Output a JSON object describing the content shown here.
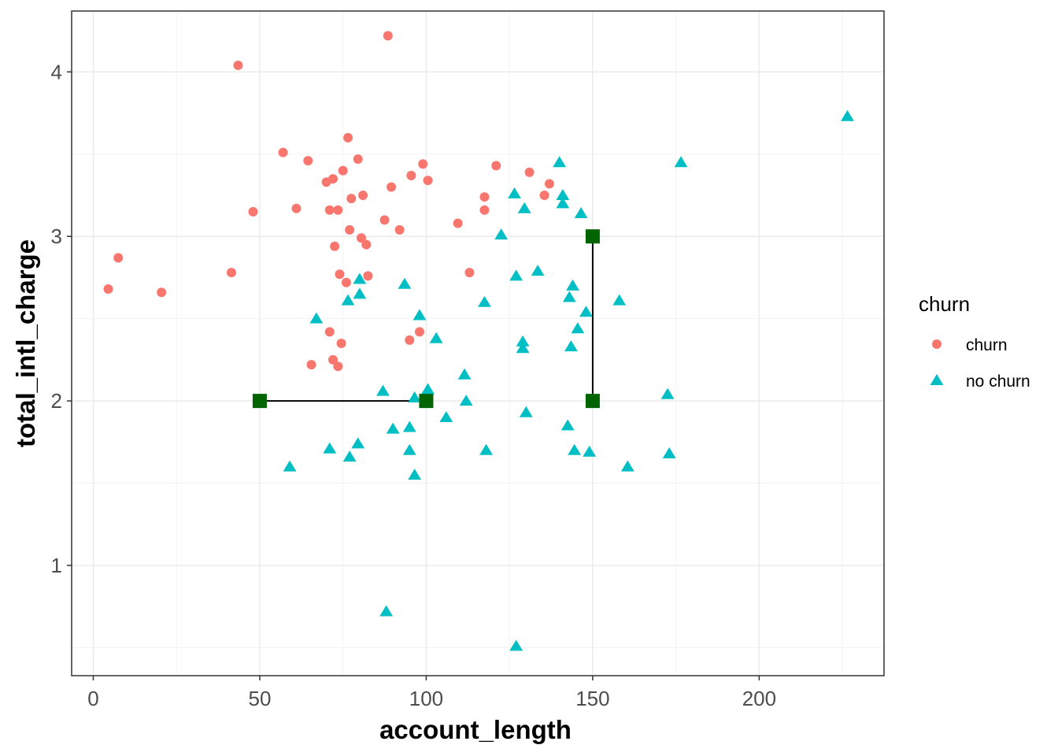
{
  "chart_data": {
    "type": "scatter",
    "xlabel": "account_length",
    "ylabel": "total_intl_charge",
    "xlim": [
      -6.5,
      237.5
    ],
    "ylim": [
      0.33,
      4.37
    ],
    "x_ticks": [
      0,
      50,
      100,
      150,
      200
    ],
    "y_ticks": [
      1,
      2,
      3,
      4
    ],
    "x_tick_labels": [
      "0",
      "50",
      "100",
      "150",
      "200"
    ],
    "y_tick_labels": [
      "1",
      "2",
      "3",
      "4"
    ],
    "grid": true,
    "legend": {
      "title": "churn",
      "position": "right",
      "entries": [
        {
          "label": "churn",
          "shape": "circle",
          "color": "#F8766D"
        },
        {
          "label": "no churn",
          "shape": "triangle",
          "color": "#00BFC4"
        }
      ]
    },
    "series": [
      {
        "name": "churn",
        "shape": "circle",
        "color": "#F8766D",
        "points": [
          [
            4.5,
            2.68
          ],
          [
            7.5,
            2.87
          ],
          [
            20.5,
            2.66
          ],
          [
            41.5,
            2.78
          ],
          [
            43.5,
            4.04
          ],
          [
            48,
            3.15
          ],
          [
            57,
            3.51
          ],
          [
            61,
            3.17
          ],
          [
            64.5,
            3.46
          ],
          [
            70,
            3.33
          ],
          [
            71,
            3.16
          ],
          [
            72,
            3.35
          ],
          [
            73.5,
            3.16
          ],
          [
            72.5,
            2.94
          ],
          [
            74,
            2.77
          ],
          [
            75,
            3.4
          ],
          [
            76.5,
            3.6
          ],
          [
            77,
            3.04
          ],
          [
            77.5,
            3.23
          ],
          [
            79.5,
            3.47
          ],
          [
            80.5,
            2.99
          ],
          [
            81,
            3.25
          ],
          [
            82,
            2.95
          ],
          [
            82.5,
            2.76
          ],
          [
            76,
            2.72
          ],
          [
            71,
            2.42
          ],
          [
            74.5,
            2.35
          ],
          [
            72,
            2.25
          ],
          [
            73.5,
            2.21
          ],
          [
            65.5,
            2.22
          ],
          [
            87.5,
            3.1
          ],
          [
            88.5,
            4.22
          ],
          [
            89.5,
            3.3
          ],
          [
            92,
            3.04
          ],
          [
            95.5,
            3.37
          ],
          [
            99,
            3.44
          ],
          [
            100.5,
            3.34
          ],
          [
            95,
            2.37
          ],
          [
            98,
            2.42
          ],
          [
            109.5,
            3.08
          ],
          [
            113,
            2.78
          ],
          [
            117.5,
            3.24
          ],
          [
            117.5,
            3.16
          ],
          [
            121,
            3.43
          ],
          [
            131,
            3.39
          ],
          [
            135.5,
            3.25
          ],
          [
            137,
            3.32
          ]
        ]
      },
      {
        "name": "no churn",
        "shape": "triangle",
        "color": "#00BFC4",
        "points": [
          [
            59,
            1.6
          ],
          [
            67,
            2.5
          ],
          [
            71,
            1.71
          ],
          [
            76.5,
            2.61
          ],
          [
            77,
            1.66
          ],
          [
            79.5,
            1.74
          ],
          [
            80,
            2.74
          ],
          [
            80,
            2.65
          ],
          [
            87,
            2.06
          ],
          [
            88,
            0.72
          ],
          [
            90,
            1.83
          ],
          [
            93.5,
            2.71
          ],
          [
            95,
            1.84
          ],
          [
            95,
            1.7
          ],
          [
            96.5,
            1.55
          ],
          [
            96.5,
            2.02
          ],
          [
            98,
            2.52
          ],
          [
            100.5,
            2.07
          ],
          [
            103,
            2.38
          ],
          [
            106,
            1.9
          ],
          [
            111.5,
            2.16
          ],
          [
            112,
            2.0
          ],
          [
            118,
            1.7
          ],
          [
            117.5,
            2.6
          ],
          [
            122.5,
            3.01
          ],
          [
            126.5,
            3.26
          ],
          [
            127,
            2.76
          ],
          [
            127,
            0.51
          ],
          [
            129,
            2.32
          ],
          [
            129,
            2.36
          ],
          [
            129.5,
            3.17
          ],
          [
            130,
            1.93
          ],
          [
            133.5,
            2.79
          ],
          [
            140,
            3.45
          ],
          [
            141,
            3.25
          ],
          [
            141,
            3.2
          ],
          [
            142.5,
            1.85
          ],
          [
            143,
            2.63
          ],
          [
            143.5,
            2.33
          ],
          [
            144,
            2.7
          ],
          [
            144.5,
            1.7
          ],
          [
            145.5,
            2.44
          ],
          [
            146.5,
            3.14
          ],
          [
            148,
            2.54
          ],
          [
            149,
            1.69
          ],
          [
            158,
            2.61
          ],
          [
            160.5,
            1.6
          ],
          [
            172.5,
            2.04
          ],
          [
            173,
            1.68
          ],
          [
            176.5,
            3.45
          ],
          [
            226.5,
            3.73
          ]
        ]
      }
    ],
    "annotations": {
      "marker_color": "#006400",
      "line_color": "#000000",
      "segments": [
        {
          "from": [
            50,
            2
          ],
          "to": [
            100,
            2
          ]
        },
        {
          "from": [
            150,
            2
          ],
          "to": [
            150,
            3
          ]
        }
      ],
      "markers": [
        [
          50,
          2
        ],
        [
          100,
          2
        ],
        [
          150,
          2
        ],
        [
          150,
          3
        ]
      ]
    },
    "colors": {
      "panel_border": "#333333",
      "grid_major": "#ebebeb",
      "grid_minor": "#f3f3f3",
      "tick_text": "#4d4d4d"
    }
  }
}
